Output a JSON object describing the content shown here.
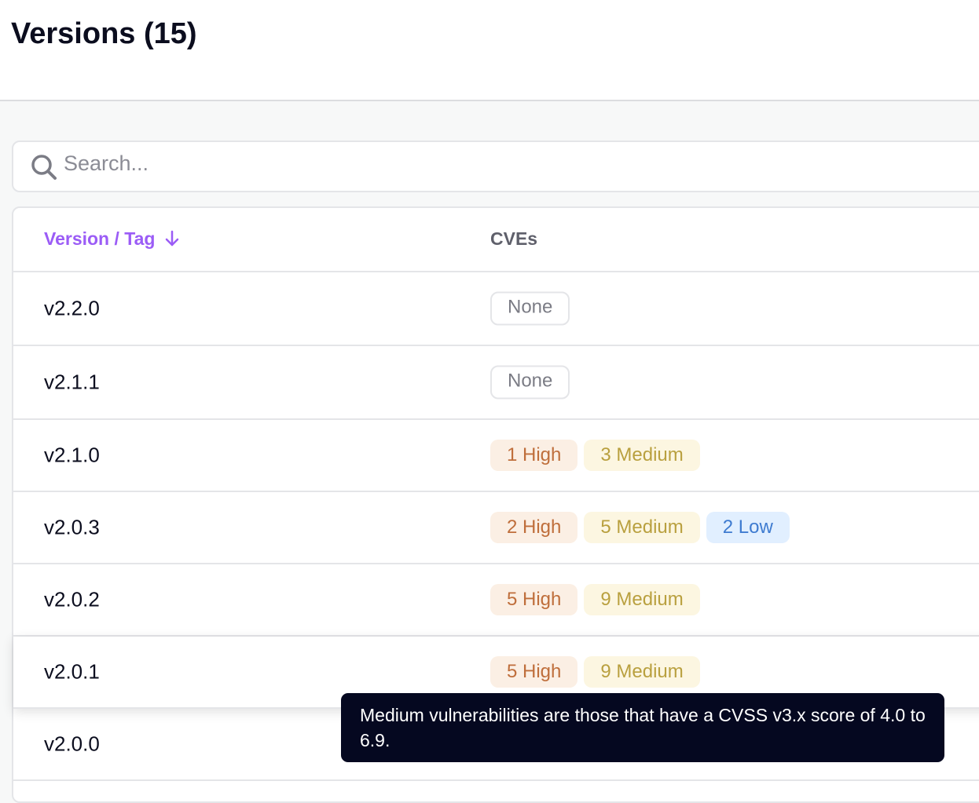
{
  "header": {
    "title": "Versions (15)"
  },
  "search": {
    "placeholder": "Search..."
  },
  "table": {
    "columns": {
      "version": "Version / Tag",
      "version_sort_icon": "arrow-down-icon",
      "cves": "CVEs"
    },
    "rows": [
      {
        "version": "v2.2.0",
        "badges": [
          {
            "type": "none",
            "label": "None"
          }
        ]
      },
      {
        "version": "v2.1.1",
        "badges": [
          {
            "type": "none",
            "label": "None"
          }
        ]
      },
      {
        "version": "v2.1.0",
        "badges": [
          {
            "type": "high",
            "label": "1 High"
          },
          {
            "type": "medium",
            "label": "3 Medium"
          }
        ]
      },
      {
        "version": "v2.0.3",
        "badges": [
          {
            "type": "high",
            "label": "2 High"
          },
          {
            "type": "medium",
            "label": "5 Medium"
          },
          {
            "type": "low",
            "label": "2 Low"
          }
        ]
      },
      {
        "version": "v2.0.2",
        "badges": [
          {
            "type": "high",
            "label": "5 High"
          },
          {
            "type": "medium",
            "label": "9 Medium"
          }
        ]
      },
      {
        "version": "v2.0.1",
        "badges": [
          {
            "type": "high",
            "label": "5 High"
          },
          {
            "type": "medium",
            "label": "9 Medium"
          }
        ]
      },
      {
        "version": "v2.0.0",
        "badges": []
      }
    ]
  },
  "tooltip": {
    "text": "Medium vulnerabilities are those that have a CVSS v3.x score of 4.0 to 6.9."
  },
  "colors": {
    "accent": "#9b5cf6",
    "high": "#bf6e3b",
    "medium": "#b9a03f",
    "low": "#3e7bd0"
  }
}
